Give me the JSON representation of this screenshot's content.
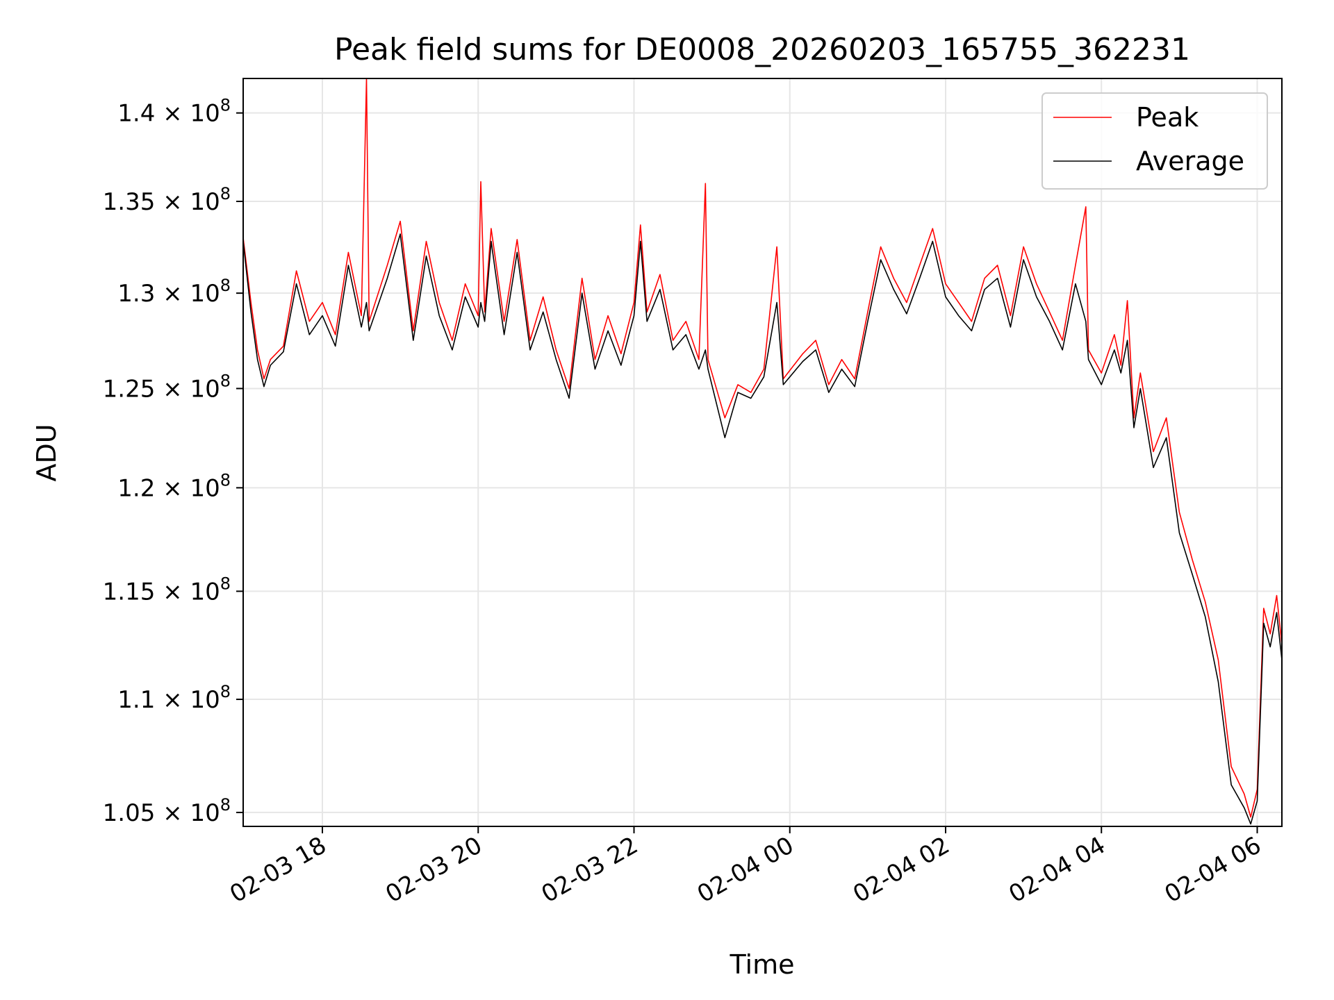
{
  "chart_data": {
    "type": "line",
    "title": "Peak field sums for DE0008_20260203_165755_362231",
    "xlabel": "Time",
    "ylabel": "ADU",
    "y_scale": "log",
    "xlim": [
      "2026-02-03 16:59",
      "2026-02-04 06:19"
    ],
    "ylim": [
      104400000,
      142000000
    ],
    "grid": true,
    "legend": "top-right",
    "x_ticks": [
      {
        "t": "2026-02-03 18:00",
        "label": "02-03 18"
      },
      {
        "t": "2026-02-03 20:00",
        "label": "02-03 20"
      },
      {
        "t": "2026-02-03 22:00",
        "label": "02-03 22"
      },
      {
        "t": "2026-02-04 00:00",
        "label": "02-04 00"
      },
      {
        "t": "2026-02-04 02:00",
        "label": "02-04 02"
      },
      {
        "t": "2026-02-04 04:00",
        "label": "02-04 04"
      },
      {
        "t": "2026-02-04 06:00",
        "label": "02-04 06"
      }
    ],
    "y_ticks": [
      {
        "v": 105000000,
        "mant": "1.05",
        "exp": "8"
      },
      {
        "v": 110000000,
        "mant": "1.1",
        "exp": "8"
      },
      {
        "v": 115000000,
        "mant": "1.15",
        "exp": "8"
      },
      {
        "v": 120000000,
        "mant": "1.2",
        "exp": "8"
      },
      {
        "v": 125000000,
        "mant": "1.25",
        "exp": "8"
      },
      {
        "v": 130000000,
        "mant": "1.3",
        "exp": "8"
      },
      {
        "v": 135000000,
        "mant": "1.35",
        "exp": "8"
      },
      {
        "v": 140000000,
        "mant": "1.4",
        "exp": "8"
      }
    ],
    "colors": {
      "Peak": "#ff0000",
      "Average": "#000000",
      "grid": "#e6e6e6"
    },
    "series": [
      {
        "name": "Peak",
        "points": [
          [
            "2026-02-03 16:59",
            133000000
          ],
          [
            "2026-02-03 17:05",
            129500000
          ],
          [
            "2026-02-03 17:10",
            127000000
          ],
          [
            "2026-02-03 17:15",
            125500000
          ],
          [
            "2026-02-03 17:20",
            126500000
          ],
          [
            "2026-02-03 17:30",
            127200000
          ],
          [
            "2026-02-03 17:40",
            131200000
          ],
          [
            "2026-02-03 17:50",
            128500000
          ],
          [
            "2026-02-03 18:00",
            129500000
          ],
          [
            "2026-02-03 18:10",
            127800000
          ],
          [
            "2026-02-03 18:20",
            132200000
          ],
          [
            "2026-02-03 18:30",
            128800000
          ],
          [
            "2026-02-03 18:34",
            142000000
          ],
          [
            "2026-02-03 18:36",
            128500000
          ],
          [
            "2026-02-03 18:50",
            131500000
          ],
          [
            "2026-02-03 19:00",
            133900000
          ],
          [
            "2026-02-03 19:10",
            128000000
          ],
          [
            "2026-02-03 19:20",
            132800000
          ],
          [
            "2026-02-03 19:30",
            129500000
          ],
          [
            "2026-02-03 19:40",
            127500000
          ],
          [
            "2026-02-03 19:50",
            130500000
          ],
          [
            "2026-02-03 20:00",
            128800000
          ],
          [
            "2026-02-03 20:02",
            136100000
          ],
          [
            "2026-02-03 20:05",
            129000000
          ],
          [
            "2026-02-03 20:10",
            133500000
          ],
          [
            "2026-02-03 20:20",
            128500000
          ],
          [
            "2026-02-03 20:30",
            132900000
          ],
          [
            "2026-02-03 20:40",
            127500000
          ],
          [
            "2026-02-03 20:50",
            129800000
          ],
          [
            "2026-02-03 21:00",
            127000000
          ],
          [
            "2026-02-03 21:10",
            125000000
          ],
          [
            "2026-02-03 21:20",
            130800000
          ],
          [
            "2026-02-03 21:30",
            126500000
          ],
          [
            "2026-02-03 21:40",
            128800000
          ],
          [
            "2026-02-03 21:50",
            126800000
          ],
          [
            "2026-02-03 22:00",
            129500000
          ],
          [
            "2026-02-03 22:05",
            133700000
          ],
          [
            "2026-02-03 22:10",
            129000000
          ],
          [
            "2026-02-03 22:20",
            131000000
          ],
          [
            "2026-02-03 22:30",
            127500000
          ],
          [
            "2026-02-03 22:40",
            128500000
          ],
          [
            "2026-02-03 22:50",
            126500000
          ],
          [
            "2026-02-03 22:55",
            136000000
          ],
          [
            "2026-02-03 22:57",
            126500000
          ],
          [
            "2026-02-03 23:10",
            123500000
          ],
          [
            "2026-02-03 23:20",
            125200000
          ],
          [
            "2026-02-03 23:30",
            124800000
          ],
          [
            "2026-02-03 23:40",
            126000000
          ],
          [
            "2026-02-03 23:50",
            132500000
          ],
          [
            "2026-02-03 23:55",
            125500000
          ],
          [
            "2026-02-04 00:10",
            126800000
          ],
          [
            "2026-02-04 00:20",
            127500000
          ],
          [
            "2026-02-04 00:30",
            125200000
          ],
          [
            "2026-02-04 00:40",
            126500000
          ],
          [
            "2026-02-04 00:50",
            125500000
          ],
          [
            "2026-02-04 01:00",
            129000000
          ],
          [
            "2026-02-04 01:10",
            132500000
          ],
          [
            "2026-02-04 01:20",
            130800000
          ],
          [
            "2026-02-04 01:30",
            129500000
          ],
          [
            "2026-02-04 01:40",
            131500000
          ],
          [
            "2026-02-04 01:50",
            133500000
          ],
          [
            "2026-02-04 02:00",
            130500000
          ],
          [
            "2026-02-04 02:10",
            129500000
          ],
          [
            "2026-02-04 02:20",
            128500000
          ],
          [
            "2026-02-04 02:30",
            130800000
          ],
          [
            "2026-02-04 02:40",
            131500000
          ],
          [
            "2026-02-04 02:50",
            128800000
          ],
          [
            "2026-02-04 03:00",
            132500000
          ],
          [
            "2026-02-04 03:10",
            130500000
          ],
          [
            "2026-02-04 03:20",
            129000000
          ],
          [
            "2026-02-04 03:30",
            127500000
          ],
          [
            "2026-02-04 03:40",
            131500000
          ],
          [
            "2026-02-04 03:48",
            134700000
          ],
          [
            "2026-02-04 03:50",
            127000000
          ],
          [
            "2026-02-04 04:00",
            125800000
          ],
          [
            "2026-02-04 04:10",
            127800000
          ],
          [
            "2026-02-04 04:15",
            126200000
          ],
          [
            "2026-02-04 04:20",
            129600000
          ],
          [
            "2026-02-04 04:25",
            123500000
          ],
          [
            "2026-02-04 04:30",
            125800000
          ],
          [
            "2026-02-04 04:40",
            121800000
          ],
          [
            "2026-02-04 04:50",
            123500000
          ],
          [
            "2026-02-04 05:00",
            118800000
          ],
          [
            "2026-02-04 05:10",
            116500000
          ],
          [
            "2026-02-04 05:20",
            114500000
          ],
          [
            "2026-02-04 05:30",
            111800000
          ],
          [
            "2026-02-04 05:40",
            107000000
          ],
          [
            "2026-02-04 05:50",
            105800000
          ],
          [
            "2026-02-04 05:55",
            104800000
          ],
          [
            "2026-02-04 06:00",
            106000000
          ],
          [
            "2026-02-04 06:05",
            114200000
          ],
          [
            "2026-02-04 06:10",
            113000000
          ],
          [
            "2026-02-04 06:15",
            114800000
          ],
          [
            "2026-02-04 06:19",
            112500000
          ]
        ]
      },
      {
        "name": "Average",
        "points": [
          [
            "2026-02-03 16:59",
            132800000
          ],
          [
            "2026-02-03 17:05",
            129000000
          ],
          [
            "2026-02-03 17:10",
            126500000
          ],
          [
            "2026-02-03 17:15",
            125100000
          ],
          [
            "2026-02-03 17:20",
            126200000
          ],
          [
            "2026-02-03 17:30",
            126900000
          ],
          [
            "2026-02-03 17:40",
            130500000
          ],
          [
            "2026-02-03 17:50",
            127800000
          ],
          [
            "2026-02-03 18:00",
            128800000
          ],
          [
            "2026-02-03 18:10",
            127200000
          ],
          [
            "2026-02-03 18:20",
            131500000
          ],
          [
            "2026-02-03 18:30",
            128200000
          ],
          [
            "2026-02-03 18:34",
            129500000
          ],
          [
            "2026-02-03 18:36",
            128000000
          ],
          [
            "2026-02-03 18:50",
            130800000
          ],
          [
            "2026-02-03 19:00",
            133200000
          ],
          [
            "2026-02-03 19:10",
            127500000
          ],
          [
            "2026-02-03 19:20",
            132000000
          ],
          [
            "2026-02-03 19:30",
            128800000
          ],
          [
            "2026-02-03 19:40",
            127000000
          ],
          [
            "2026-02-03 19:50",
            129800000
          ],
          [
            "2026-02-03 20:00",
            128200000
          ],
          [
            "2026-02-03 20:02",
            129500000
          ],
          [
            "2026-02-03 20:05",
            128500000
          ],
          [
            "2026-02-03 20:10",
            132800000
          ],
          [
            "2026-02-03 20:20",
            127800000
          ],
          [
            "2026-02-03 20:30",
            132200000
          ],
          [
            "2026-02-03 20:40",
            127000000
          ],
          [
            "2026-02-03 20:50",
            129000000
          ],
          [
            "2026-02-03 21:00",
            126500000
          ],
          [
            "2026-02-03 21:10",
            124500000
          ],
          [
            "2026-02-03 21:20",
            130000000
          ],
          [
            "2026-02-03 21:30",
            126000000
          ],
          [
            "2026-02-03 21:40",
            128000000
          ],
          [
            "2026-02-03 21:50",
            126200000
          ],
          [
            "2026-02-03 22:00",
            128800000
          ],
          [
            "2026-02-03 22:05",
            132800000
          ],
          [
            "2026-02-03 22:10",
            128500000
          ],
          [
            "2026-02-03 22:20",
            130200000
          ],
          [
            "2026-02-03 22:30",
            127000000
          ],
          [
            "2026-02-03 22:40",
            127800000
          ],
          [
            "2026-02-03 22:50",
            126000000
          ],
          [
            "2026-02-03 22:55",
            127000000
          ],
          [
            "2026-02-03 22:57",
            126000000
          ],
          [
            "2026-02-03 23:10",
            122500000
          ],
          [
            "2026-02-03 23:20",
            124800000
          ],
          [
            "2026-02-03 23:30",
            124500000
          ],
          [
            "2026-02-03 23:40",
            125600000
          ],
          [
            "2026-02-03 23:50",
            129500000
          ],
          [
            "2026-02-03 23:55",
            125200000
          ],
          [
            "2026-02-04 00:10",
            126400000
          ],
          [
            "2026-02-04 00:20",
            127000000
          ],
          [
            "2026-02-04 00:30",
            124800000
          ],
          [
            "2026-02-04 00:40",
            126000000
          ],
          [
            "2026-02-04 00:50",
            125100000
          ],
          [
            "2026-02-04 01:00",
            128500000
          ],
          [
            "2026-02-04 01:10",
            131800000
          ],
          [
            "2026-02-04 01:20",
            130200000
          ],
          [
            "2026-02-04 01:30",
            128900000
          ],
          [
            "2026-02-04 01:40",
            130800000
          ],
          [
            "2026-02-04 01:50",
            132800000
          ],
          [
            "2026-02-04 02:00",
            129800000
          ],
          [
            "2026-02-04 02:10",
            128800000
          ],
          [
            "2026-02-04 02:20",
            128000000
          ],
          [
            "2026-02-04 02:30",
            130200000
          ],
          [
            "2026-02-04 02:40",
            130800000
          ],
          [
            "2026-02-04 02:50",
            128200000
          ],
          [
            "2026-02-04 03:00",
            131800000
          ],
          [
            "2026-02-04 03:10",
            129800000
          ],
          [
            "2026-02-04 03:20",
            128500000
          ],
          [
            "2026-02-04 03:30",
            127000000
          ],
          [
            "2026-02-04 03:40",
            130500000
          ],
          [
            "2026-02-04 03:48",
            128500000
          ],
          [
            "2026-02-04 03:50",
            126500000
          ],
          [
            "2026-02-04 04:00",
            125200000
          ],
          [
            "2026-02-04 04:10",
            127000000
          ],
          [
            "2026-02-04 04:15",
            125800000
          ],
          [
            "2026-02-04 04:20",
            127500000
          ],
          [
            "2026-02-04 04:25",
            123000000
          ],
          [
            "2026-02-04 04:30",
            125000000
          ],
          [
            "2026-02-04 04:40",
            121000000
          ],
          [
            "2026-02-04 04:50",
            122500000
          ],
          [
            "2026-02-04 05:00",
            117800000
          ],
          [
            "2026-02-04 05:10",
            115800000
          ],
          [
            "2026-02-04 05:20",
            113800000
          ],
          [
            "2026-02-04 05:30",
            110800000
          ],
          [
            "2026-02-04 05:40",
            106200000
          ],
          [
            "2026-02-04 05:50",
            105200000
          ],
          [
            "2026-02-04 05:55",
            104500000
          ],
          [
            "2026-02-04 06:00",
            105500000
          ],
          [
            "2026-02-04 06:05",
            113500000
          ],
          [
            "2026-02-04 06:10",
            112400000
          ],
          [
            "2026-02-04 06:15",
            114000000
          ],
          [
            "2026-02-04 06:19",
            111800000
          ]
        ]
      }
    ]
  }
}
